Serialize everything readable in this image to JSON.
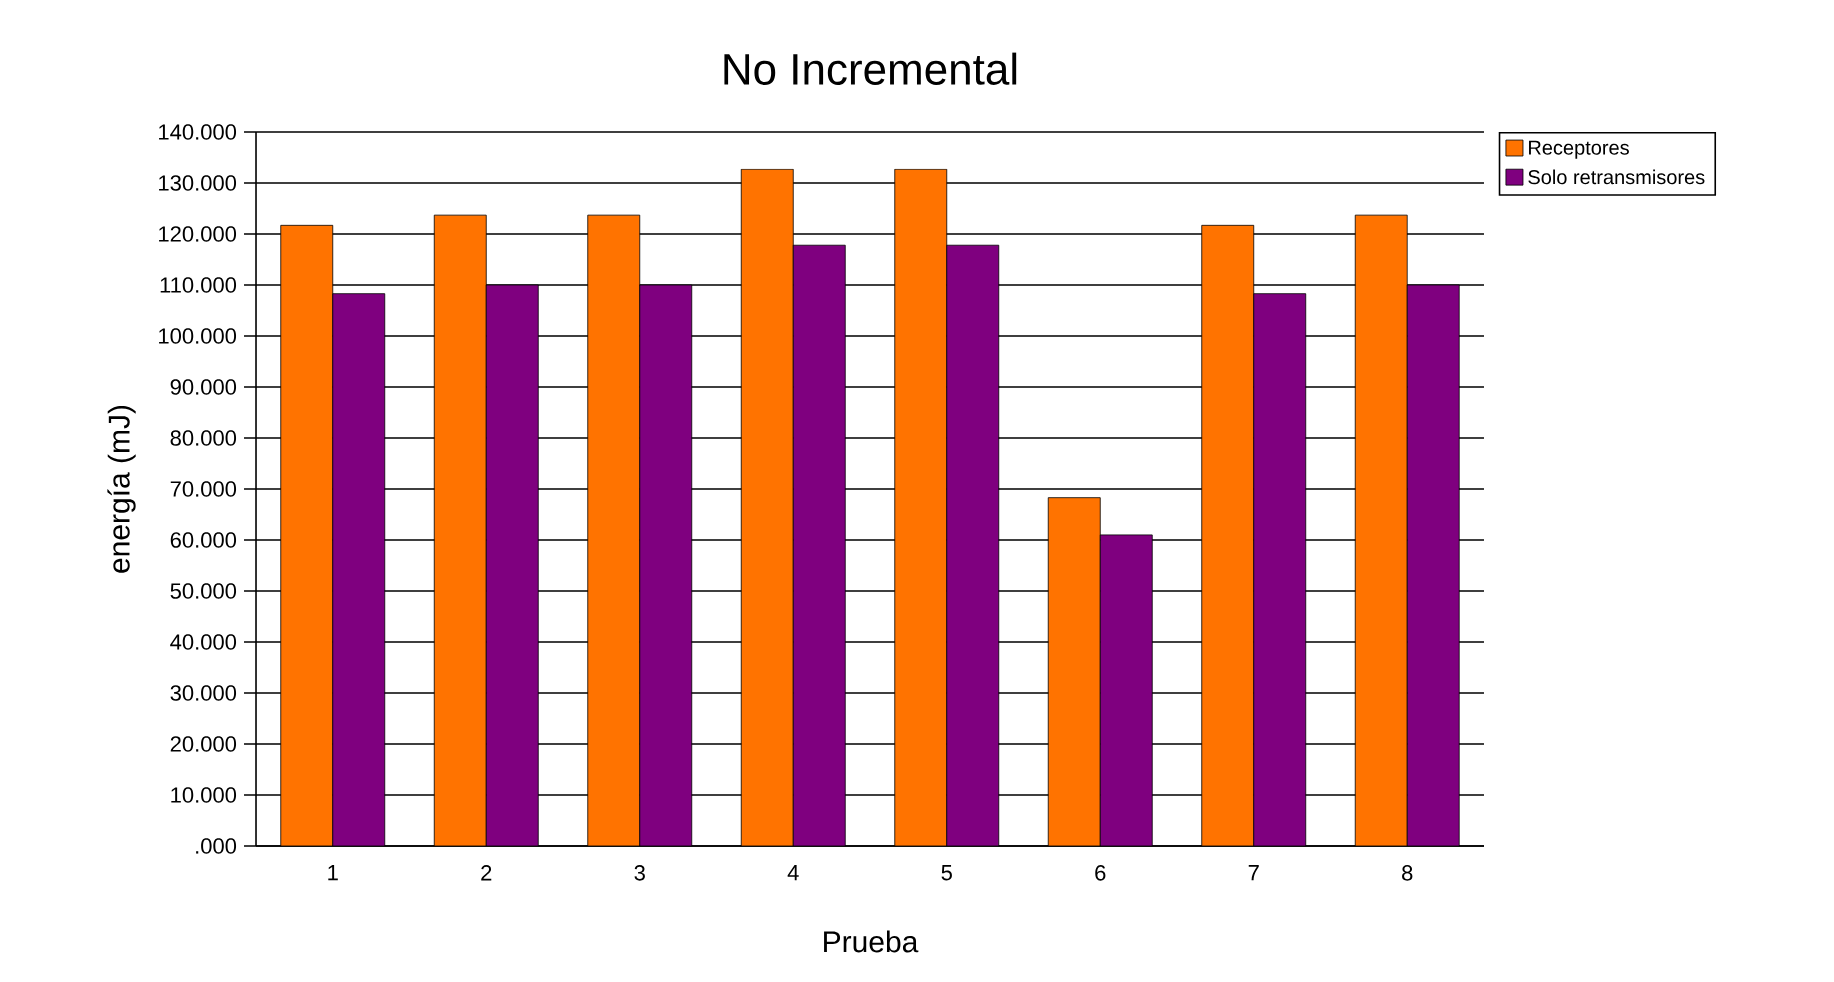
{
  "chart_data": {
    "type": "bar",
    "title": "No Incremental",
    "xlabel": "Prueba",
    "ylabel": "energía (mJ)",
    "categories": [
      "1",
      "2",
      "3",
      "4",
      "5",
      "6",
      "7",
      "8"
    ],
    "series": [
      {
        "name": "Receptores",
        "color": "#ff7300",
        "values": [
          121700,
          123700,
          123700,
          132700,
          132700,
          68300,
          121700,
          123700
        ]
      },
      {
        "name": "Solo retransmisores",
        "color": "#7f007f",
        "values": [
          108300,
          110000,
          110000,
          117800,
          117800,
          61000,
          108300,
          110000
        ]
      }
    ],
    "ylim": [
      0,
      140000
    ],
    "yticks": [
      {
        "value": 0,
        "label": ".000"
      },
      {
        "value": 10000,
        "label": "10.000"
      },
      {
        "value": 20000,
        "label": "20.000"
      },
      {
        "value": 30000,
        "label": "30.000"
      },
      {
        "value": 40000,
        "label": "40.000"
      },
      {
        "value": 50000,
        "label": "50.000"
      },
      {
        "value": 60000,
        "label": "60.000"
      },
      {
        "value": 70000,
        "label": "70.000"
      },
      {
        "value": 80000,
        "label": "80.000"
      },
      {
        "value": 90000,
        "label": "90.000"
      },
      {
        "value": 100000,
        "label": "100.000"
      },
      {
        "value": 110000,
        "label": "110.000"
      },
      {
        "value": 120000,
        "label": "120.000"
      },
      {
        "value": 130000,
        "label": "130.000"
      },
      {
        "value": 140000,
        "label": "140.000"
      }
    ],
    "grid": "y",
    "legend": "top right"
  }
}
